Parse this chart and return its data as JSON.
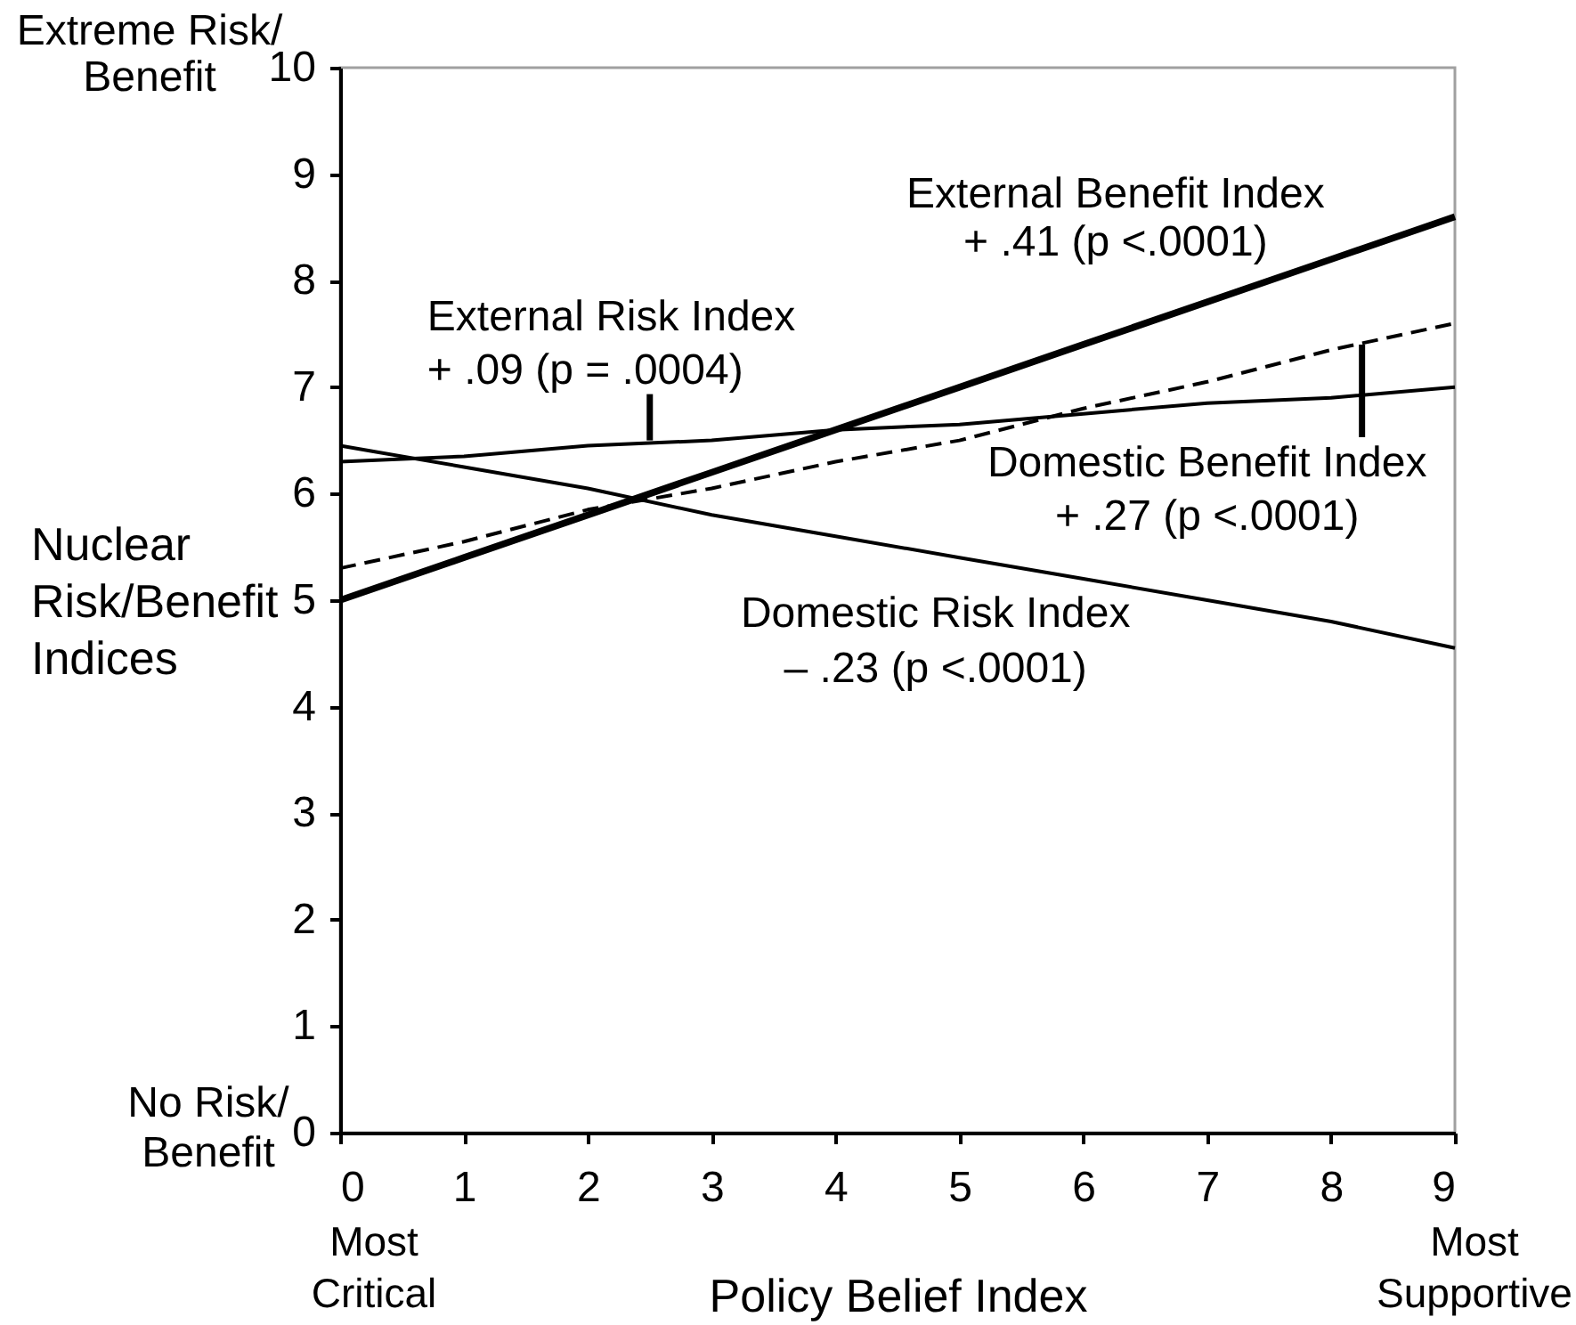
{
  "chart_data": {
    "type": "line",
    "xlabel": "Policy Belief Index",
    "ylabel": "Nuclear\nRisk/Benefit\nIndices",
    "x": [
      0,
      1,
      2,
      3,
      4,
      5,
      6,
      7,
      8,
      9
    ],
    "series": [
      {
        "color": "#000000",
        "line_style": "solid",
        "values": [
          6.3,
          6.35,
          6.45,
          6.5,
          6.6,
          6.65,
          6.75,
          6.85,
          6.9,
          7.0
        ]
      },
      {
        "color": "#000000",
        "line_style": "solid",
        "values": [
          5.0,
          5.4,
          5.8,
          6.2,
          6.6,
          7.0,
          7.4,
          7.8,
          8.2,
          8.6
        ]
      },
      {
        "color": "#000000",
        "line_style": "dashed",
        "values": [
          5.3,
          5.55,
          5.85,
          6.05,
          6.3,
          6.5,
          6.8,
          7.05,
          7.35,
          7.6
        ]
      },
      {
        "color": "#000000",
        "line_style": "solid",
        "values": [
          6.45,
          6.25,
          6.05,
          5.8,
          5.6,
          5.4,
          5.2,
          5.0,
          4.8,
          4.55
        ]
      }
    ],
    "annotations": [
      {
        "text": "External Risk Index\n+ .09 (p = .0004)",
        "x": 2.5,
        "y": 6.5
      },
      {
        "text": "External Benefit Index\n+ .41 (p <.0001)",
        "x": 8,
        "y": 8.2
      },
      {
        "text": "Domestic Benefit Index\n+ .27 (p <.0001)",
        "x": 8.25,
        "y": 7.4
      },
      {
        "text": "Domestic Risk Index\n– .23 (p <.0001)",
        "x": 6,
        "y": 5.2
      },
      "Extreme Risk/\nBenefit",
      "No Risk/\nBenefit",
      "Most\nCritical",
      "Most\nSupportive"
    ],
    "xlim": [
      0,
      9
    ],
    "ylim": [
      0,
      10
    ],
    "xticks": [
      0,
      1,
      2,
      3,
      4,
      5,
      6,
      7,
      8,
      9
    ],
    "yticks": [
      0,
      1,
      2,
      3,
      4,
      5,
      6,
      7,
      8,
      9,
      10
    ],
    "grid": false,
    "legend": false,
    "marker": "none"
  }
}
